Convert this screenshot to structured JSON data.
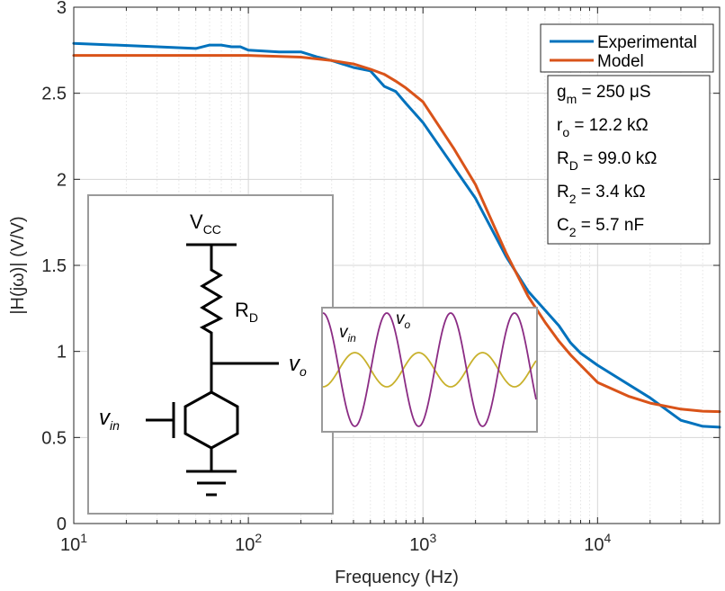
{
  "chart_data": {
    "type": "line",
    "xlabel": "Frequency (Hz)",
    "ylabel": "|H(jω)| (V/V)",
    "xscale": "log",
    "xlim": [
      10,
      50000
    ],
    "ylim": [
      0,
      3
    ],
    "grid": true,
    "legend": "top-right",
    "y_ticks": [
      "0",
      "0.5",
      "1",
      "1.5",
      "2",
      "2.5",
      "3"
    ],
    "x_ticks": [
      {
        "base": "10",
        "exp": "1"
      },
      {
        "base": "10",
        "exp": "2"
      },
      {
        "base": "10",
        "exp": "3"
      },
      {
        "base": "10",
        "exp": "4"
      }
    ],
    "series": [
      {
        "name": "Experimental",
        "color": "#0072BD",
        "x": [
          10,
          30,
          50,
          60,
          70,
          80,
          90,
          100,
          150,
          200,
          250,
          300,
          400,
          500,
          600,
          700,
          800,
          1000,
          2000,
          3000,
          4000,
          5000,
          6000,
          7000,
          8000,
          10000,
          20000,
          30000,
          40000,
          50000
        ],
        "y": [
          2.79,
          2.77,
          2.76,
          2.78,
          2.78,
          2.77,
          2.77,
          2.75,
          2.74,
          2.74,
          2.71,
          2.69,
          2.65,
          2.63,
          2.54,
          2.51,
          2.44,
          2.33,
          1.89,
          1.55,
          1.35,
          1.24,
          1.15,
          1.05,
          0.99,
          0.92,
          0.73,
          0.6,
          0.565,
          0.56
        ]
      },
      {
        "name": "Model",
        "color": "#D95319",
        "x": [
          10,
          50,
          100,
          200,
          300,
          400,
          500,
          600,
          700,
          800,
          1000,
          1500,
          2000,
          3000,
          4000,
          5000,
          6000,
          7000,
          8000,
          10000,
          15000,
          20000,
          30000,
          40000,
          50000
        ],
        "y": [
          2.72,
          2.72,
          2.72,
          2.71,
          2.69,
          2.67,
          2.64,
          2.61,
          2.57,
          2.53,
          2.45,
          2.18,
          1.97,
          1.57,
          1.32,
          1.17,
          1.06,
          0.98,
          0.92,
          0.82,
          0.74,
          0.7,
          0.665,
          0.653,
          0.65
        ]
      }
    ],
    "parameters": [
      {
        "sym": "g",
        "sub": "m",
        "value": "250 μS"
      },
      {
        "sym": "r",
        "sub": "o",
        "value": "12.2 kΩ"
      },
      {
        "sym": "R",
        "sub": "D",
        "value": "99.0 kΩ"
      },
      {
        "sym": "R",
        "sub": "2",
        "value": "3.4 kΩ"
      },
      {
        "sym": "C",
        "sub": "2",
        "value": "5.7 nF"
      }
    ],
    "circuit_inset": {
      "vcc": {
        "sym": "V",
        "sub": "CC"
      },
      "rd": {
        "sym": "R",
        "sub": "D"
      },
      "vo": {
        "sym": "v",
        "sub": "o"
      },
      "vin": {
        "sym": "v",
        "sub": "in"
      }
    },
    "waveform_inset": {
      "vin": {
        "sym": "v",
        "sub": "in",
        "color": "#C8B12C"
      },
      "vo": {
        "sym": "v",
        "sub": "o",
        "color": "#8B2C84"
      }
    }
  }
}
